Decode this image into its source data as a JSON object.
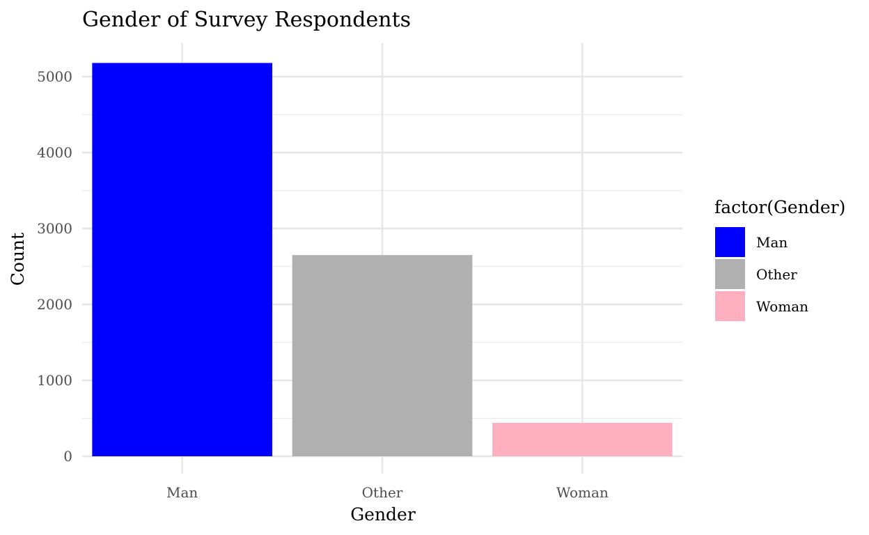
{
  "chart_data": {
    "type": "bar",
    "title": "Gender of Survey Respondents",
    "xlabel": "Gender",
    "ylabel": "Count",
    "categories": [
      "Man",
      "Other",
      "Woman"
    ],
    "values": [
      5180,
      2650,
      440
    ],
    "colors": [
      "#0000ff",
      "#b0b0b0",
      "#ffb0c0"
    ],
    "ylim": [
      -100,
      5500
    ],
    "yticks": [
      0,
      1000,
      2000,
      3000,
      4000,
      5000
    ],
    "grid": true,
    "legend": {
      "title": "factor(Gender)",
      "position": "right",
      "entries": [
        "Man",
        "Other",
        "Woman"
      ]
    }
  }
}
